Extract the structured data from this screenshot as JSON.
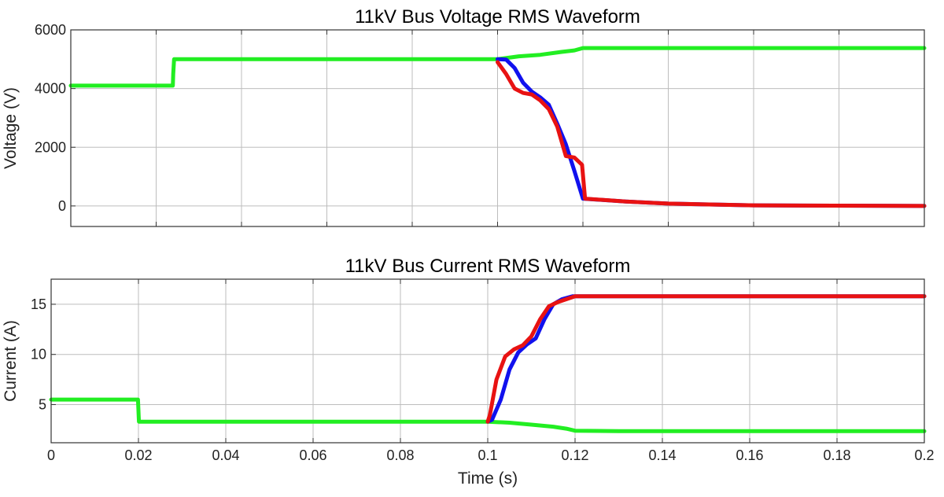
{
  "chart_data": [
    {
      "type": "line",
      "title": "11kV Bus Voltage RMS Waveform",
      "xlabel": "",
      "ylabel": "Voltage (V)",
      "xlim": [
        0,
        0.2
      ],
      "ylim": [
        -700,
        6000
      ],
      "xticks": [
        0,
        0.02,
        0.04,
        0.06,
        0.08,
        0.1,
        0.12,
        0.14,
        0.16,
        0.18,
        0.2
      ],
      "yticks": [
        0,
        2000,
        4000,
        6000
      ],
      "show_xtick_labels": false,
      "grid": true,
      "series": [
        {
          "color": "#22ee22",
          "x": [
            0,
            0.0239,
            0.024,
            0.0242,
            0.1,
            0.105,
            0.11,
            0.115,
            0.118,
            0.12,
            0.13,
            0.2
          ],
          "y": [
            4100,
            4100,
            4500,
            5000,
            5000,
            5100,
            5150,
            5250,
            5300,
            5380,
            5380,
            5380
          ]
        },
        {
          "color": "#1111ee",
          "x": [
            0.1,
            0.102,
            0.104,
            0.106,
            0.108,
            0.11,
            0.112,
            0.114,
            0.116,
            0.118,
            0.12,
            0.13,
            0.14,
            0.16,
            0.2
          ],
          "y": [
            5000,
            4990,
            4700,
            4200,
            3900,
            3700,
            3450,
            2800,
            2100,
            1200,
            250,
            150,
            80,
            20,
            0
          ]
        },
        {
          "color": "#e81212",
          "x": [
            0.1,
            0.102,
            0.104,
            0.106,
            0.108,
            0.11,
            0.112,
            0.114,
            0.116,
            0.118,
            0.1198,
            0.1205,
            0.13,
            0.14,
            0.16,
            0.2
          ],
          "y": [
            4900,
            4500,
            4000,
            3850,
            3800,
            3600,
            3300,
            2700,
            1700,
            1650,
            1400,
            250,
            150,
            80,
            20,
            0
          ]
        }
      ]
    },
    {
      "type": "line",
      "title": "11kV Bus Current RMS Waveform",
      "xlabel": "Time (s)",
      "ylabel": "Current (A)",
      "xlim": [
        0,
        0.2
      ],
      "ylim": [
        1.2,
        17.5
      ],
      "xticks": [
        0,
        0.02,
        0.04,
        0.06,
        0.08,
        0.1,
        0.12,
        0.14,
        0.16,
        0.18,
        0.2
      ],
      "xtick_labels": [
        "0",
        "0.02",
        "0.04",
        "0.06",
        "0.08",
        "0.1",
        "0.12",
        "0.14",
        "0.16",
        "0.18",
        "0.2"
      ],
      "yticks": [
        5,
        10,
        15
      ],
      "show_xtick_labels": true,
      "grid": true,
      "series": [
        {
          "color": "#22ee22",
          "x": [
            0,
            0.0199,
            0.0201,
            0.1,
            0.105,
            0.11,
            0.115,
            0.118,
            0.12,
            0.13,
            0.2
          ],
          "y": [
            5.5,
            5.5,
            3.3,
            3.3,
            3.2,
            3.0,
            2.8,
            2.6,
            2.4,
            2.35,
            2.35
          ]
        },
        {
          "color": "#1111ee",
          "x": [
            0.1,
            0.101,
            0.103,
            0.105,
            0.107,
            0.109,
            0.111,
            0.113,
            0.115,
            0.117,
            0.1195,
            0.13,
            0.2
          ],
          "y": [
            3.3,
            3.5,
            5.5,
            8.5,
            10.2,
            11.0,
            11.6,
            13.5,
            15.0,
            15.5,
            15.8,
            15.8,
            15.8
          ]
        },
        {
          "color": "#e81212",
          "x": [
            0.1,
            0.1005,
            0.102,
            0.104,
            0.106,
            0.108,
            0.11,
            0.112,
            0.114,
            0.116,
            0.118,
            0.12,
            0.2
          ],
          "y": [
            3.3,
            4.0,
            7.5,
            9.8,
            10.5,
            10.9,
            11.8,
            13.5,
            14.8,
            15.2,
            15.5,
            15.8,
            15.8
          ]
        }
      ]
    }
  ]
}
